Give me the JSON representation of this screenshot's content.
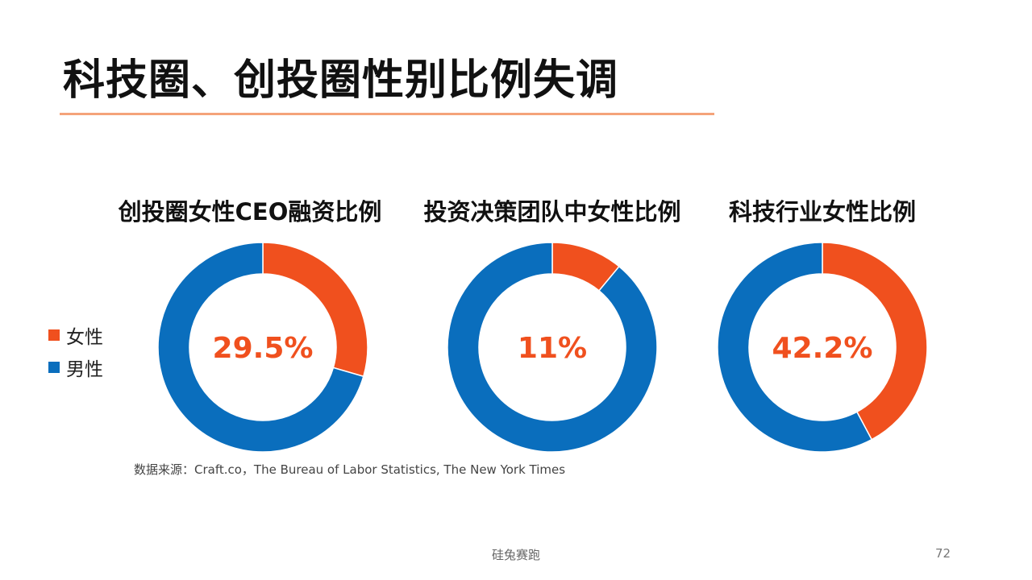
{
  "slide": {
    "title": "科技圈、创投圈性别比例失调",
    "source": "数据来源：Craft.co，The Bureau of Labor Statistics,  The New York Times",
    "footer_brand": "硅兔赛跑",
    "page_number": "72"
  },
  "colors": {
    "female": "#F0501E",
    "male": "#0A6EBD",
    "accent_line": "#F4A37A"
  },
  "legend": {
    "female_label": "女性",
    "male_label": "男性"
  },
  "chart_data": [
    {
      "type": "pie",
      "title": "创投圈女性CEO融资比例",
      "categories": [
        "女性",
        "男性"
      ],
      "values": [
        29.5,
        70.5
      ],
      "center_label": "29.5%"
    },
    {
      "type": "pie",
      "title": "投资决策团队中女性比例",
      "categories": [
        "女性",
        "男性"
      ],
      "values": [
        11,
        89
      ],
      "center_label": "11%"
    },
    {
      "type": "pie",
      "title": "科技行业女性比例",
      "categories": [
        "女性",
        "男性"
      ],
      "values": [
        42.2,
        57.8
      ],
      "center_label": "42.2%"
    }
  ]
}
